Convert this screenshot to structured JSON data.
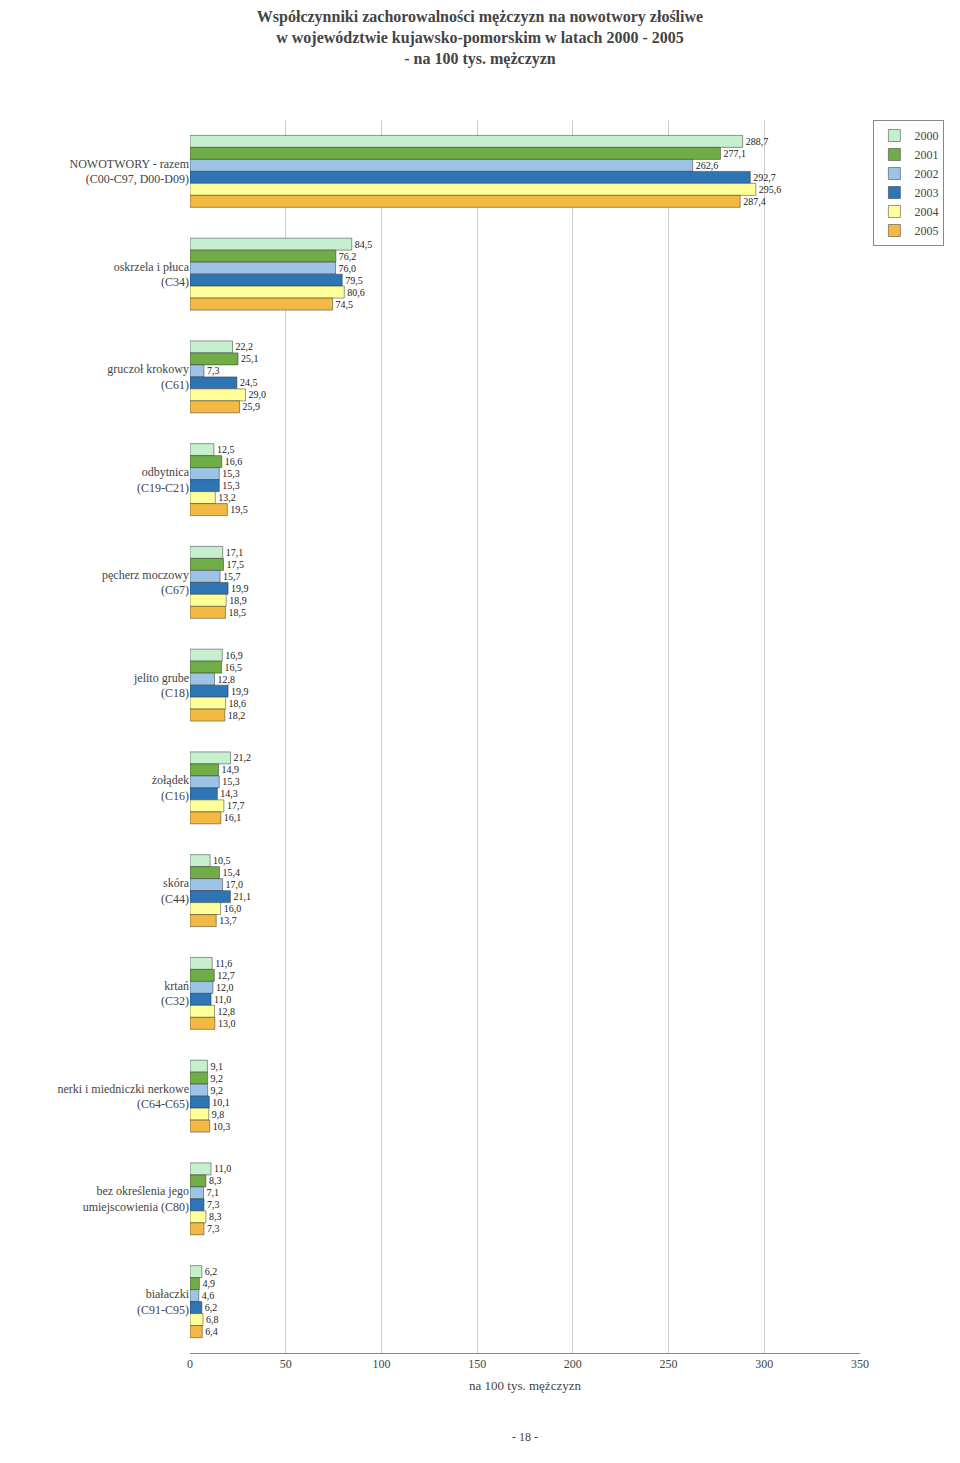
{
  "chart_data": {
    "type": "bar",
    "orientation": "horizontal",
    "title": "Współczynniki zachorowalności mężczyzn na nowotwory złośliwe\nw województwie kujawsko-pomorskim w latach 2000 - 2005\n- na 100 tys. mężczyzn",
    "xlabel": "na 100 tys. mężczyzn",
    "categories": [
      "NOWOTWORY - razem\n(C00-C97, D00-D09)",
      "oskrzela i płuca\n(C34)",
      "gruczoł krokowy\n(C61)",
      "odbytnica\n(C19-C21)",
      "pęcherz moczowy\n(C67)",
      "jelito grube\n(C18)",
      "żołądek\n(C16)",
      "skóra\n(C44)",
      "krtań\n(C32)",
      "nerki i miedniczki nerkowe\n(C64-C65)",
      "bez określenia jego\numiejscowienia (C80)",
      "białaczki\n(C91-C95)"
    ],
    "series": [
      {
        "name": "2000",
        "color": "#c6efce",
        "values": [
          288.7,
          84.5,
          22.2,
          12.5,
          17.1,
          16.9,
          21.2,
          10.5,
          11.6,
          9.1,
          11.0,
          6.2
        ],
        "value_labels": [
          "288,7",
          "84,5",
          "22,2",
          "12,5",
          "17,1",
          "16,9",
          "21,2",
          "10,5",
          "11,6",
          "9,1",
          "11,0",
          "6,2"
        ]
      },
      {
        "name": "2001",
        "color": "#70ad47",
        "values": [
          277.1,
          76.2,
          25.1,
          16.6,
          17.5,
          16.5,
          14.9,
          15.4,
          12.7,
          9.2,
          8.3,
          4.9
        ],
        "value_labels": [
          "277,1",
          "76,2",
          "25,1",
          "16,6",
          "17,5",
          "16,5",
          "14,9",
          "15,4",
          "12,7",
          "9,2",
          "8,3",
          "4,9"
        ]
      },
      {
        "name": "2002",
        "color": "#9dc3e6",
        "values": [
          262.6,
          76.0,
          7.3,
          15.3,
          15.7,
          12.8,
          15.3,
          17.0,
          12.0,
          9.2,
          7.1,
          4.6
        ],
        "value_labels": [
          "262,6",
          "76,0",
          "7,3",
          "15,3",
          "15,7",
          "12,8",
          "15,3",
          "17,0",
          "12,0",
          "9,2",
          "7,1",
          "4,6"
        ]
      },
      {
        "name": "2003",
        "color": "#2e75b6",
        "values": [
          292.7,
          79.5,
          24.5,
          15.3,
          19.9,
          19.9,
          14.3,
          21.1,
          11.0,
          10.1,
          7.3,
          6.2
        ],
        "value_labels": [
          "292,7",
          "79,5",
          "24,5",
          "15,3",
          "19,9",
          "19,9",
          "14,3",
          "21,1",
          "11,0",
          "10,1",
          "7,3",
          "6,2"
        ]
      },
      {
        "name": "2004",
        "color": "#ffff99",
        "values": [
          295.6,
          80.6,
          29.0,
          13.2,
          18.9,
          18.6,
          17.7,
          16.0,
          12.8,
          9.8,
          8.3,
          6.8
        ],
        "value_labels": [
          "295,6",
          "80,6",
          "29,0",
          "13,2",
          "18,9",
          "18,6",
          "17,7",
          "16,0",
          "12,8",
          "9,8",
          "8,3",
          "6,8"
        ]
      },
      {
        "name": "2005",
        "color": "#f4b942",
        "values": [
          287.4,
          74.5,
          25.9,
          19.5,
          18.5,
          18.2,
          16.1,
          13.7,
          13.0,
          10.3,
          7.3,
          6.4
        ],
        "value_labels": [
          "287,4",
          "74,5",
          "25,9",
          "19,5",
          "18,5",
          "18,2",
          "16,1",
          "13,7",
          "13,0",
          "10,3",
          "7,3",
          "6,4"
        ]
      }
    ],
    "xlim": [
      0,
      350
    ],
    "xticks": [
      0,
      50,
      100,
      150,
      200,
      250,
      300,
      350
    ],
    "grid": true,
    "legend": "upper right",
    "data_labels": true,
    "annotations": [
      "- 18 -"
    ]
  }
}
